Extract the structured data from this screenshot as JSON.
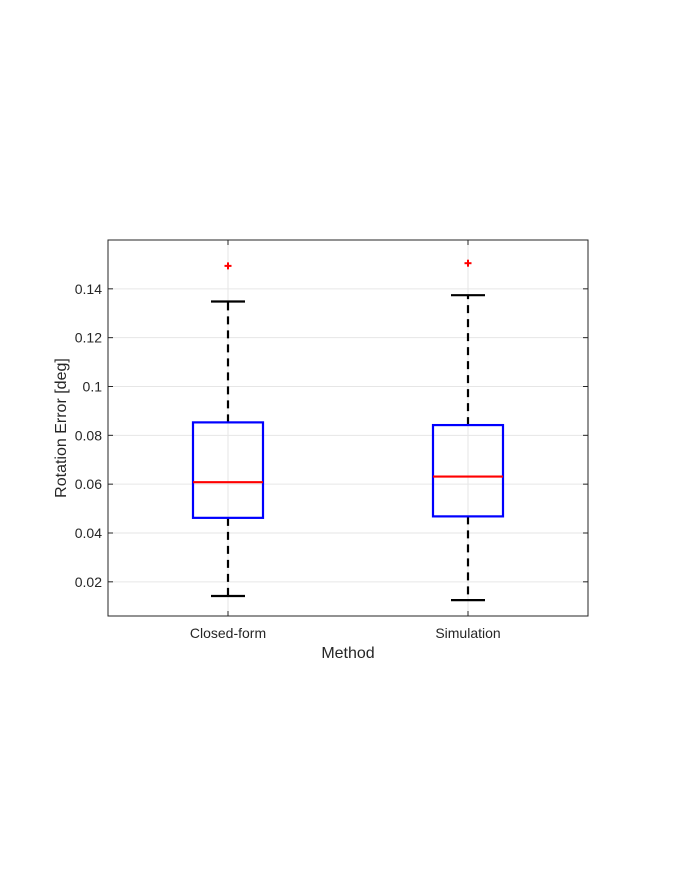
{
  "chart_data": {
    "type": "box",
    "xlabel": "Method",
    "ylabel": "Rotation Error [deg]",
    "ylim": [
      0.006,
      0.16
    ],
    "yticks": [
      0.02,
      0.04,
      0.06,
      0.08,
      0.1,
      0.12,
      0.14
    ],
    "ytick_labels": [
      "0.02",
      "0.04",
      "0.06",
      "0.08",
      "0.1",
      "0.12",
      "0.14"
    ],
    "categories": [
      "Closed-form",
      "Simulation"
    ],
    "grid": true,
    "boxes": [
      {
        "category": "Closed-form",
        "whisker_low": 0.0142,
        "q1": 0.0462,
        "median": 0.0608,
        "q3": 0.0853,
        "whisker_high": 0.1348,
        "outliers": [
          0.1494
        ]
      },
      {
        "category": "Simulation",
        "whisker_low": 0.0125,
        "q1": 0.0468,
        "median": 0.0631,
        "q3": 0.0842,
        "whisker_high": 0.1374,
        "outliers": [
          0.1505
        ]
      }
    ],
    "colors": {
      "box": "#0000ff",
      "median": "#ff0000",
      "whisker": "#000000",
      "outlier": "#ff0000",
      "grid": "#e6e6e6",
      "axis": "#262626"
    }
  }
}
